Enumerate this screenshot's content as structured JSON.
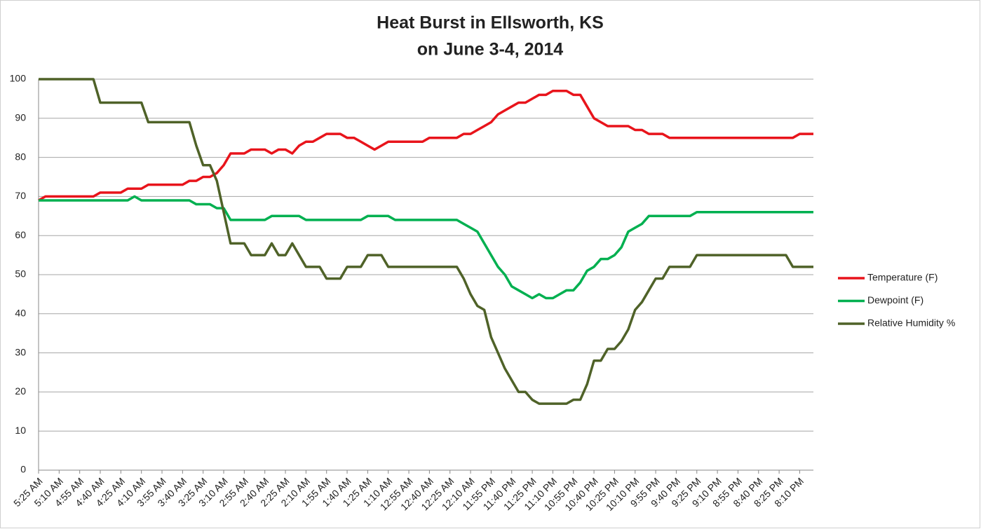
{
  "chart_data": {
    "type": "line",
    "title": "Heat Burst in Ellsworth, KS",
    "subtitle": "on June 3-4, 2014",
    "categories": [
      "5:25 AM",
      null,
      null,
      "5:10 AM",
      null,
      null,
      "4:55 AM",
      null,
      null,
      "4:40 AM",
      null,
      null,
      "4:25 AM",
      null,
      null,
      "4:10 AM",
      null,
      null,
      "3:55 AM",
      null,
      null,
      "3:40 AM",
      null,
      null,
      "3:25 AM",
      null,
      null,
      "3:10 AM",
      null,
      null,
      "2:55 AM",
      null,
      null,
      "2:40 AM",
      null,
      null,
      "2:25 AM",
      null,
      null,
      "2:10 AM",
      null,
      null,
      "1:55 AM",
      null,
      null,
      "1:40 AM",
      null,
      null,
      "1:25 AM",
      null,
      null,
      "1:10 AM",
      null,
      null,
      "12:55 AM",
      null,
      null,
      "12:40 AM",
      null,
      null,
      "12:25 AM",
      null,
      null,
      "12:10 AM",
      null,
      null,
      "11:55 PM",
      null,
      null,
      "11:40 PM",
      null,
      null,
      "11:25 PM",
      null,
      null,
      "11:10 PM",
      null,
      null,
      "10:55 PM",
      null,
      null,
      "10:40 PM",
      null,
      null,
      "10:25 PM",
      null,
      null,
      "10:10 PM",
      null,
      null,
      "9:55 PM",
      null,
      null,
      "9:40 PM",
      null,
      null,
      "9:25 PM",
      null,
      null,
      "9:10 PM",
      null,
      null,
      "8:55 PM",
      null,
      null,
      "8:40 PM",
      null,
      null,
      "8:25 PM",
      null,
      null,
      "8:10 PM",
      null,
      null
    ],
    "series": [
      {
        "name": "Temperature (F)",
        "color": "#e8141b",
        "values": [
          69,
          70,
          70,
          70,
          70,
          70,
          70,
          70,
          70,
          71,
          71,
          71,
          71,
          72,
          72,
          72,
          73,
          73,
          73,
          73,
          73,
          73,
          74,
          74,
          75,
          75,
          76,
          78,
          81,
          81,
          81,
          82,
          82,
          82,
          81,
          82,
          82,
          81,
          83,
          84,
          84,
          85,
          86,
          86,
          86,
          85,
          85,
          84,
          83,
          82,
          83,
          84,
          84,
          84,
          84,
          84,
          84,
          85,
          85,
          85,
          85,
          85,
          86,
          86,
          87,
          88,
          89,
          91,
          92,
          93,
          94,
          94,
          95,
          96,
          96,
          97,
          97,
          97,
          96,
          96,
          93,
          90,
          89,
          88,
          88,
          88,
          88,
          87,
          87,
          86,
          86,
          86,
          85,
          85,
          85,
          85,
          85,
          85,
          85,
          85,
          85,
          85,
          85,
          85,
          85,
          85,
          85,
          85,
          85,
          85,
          85,
          86,
          86,
          86
        ]
      },
      {
        "name": "Dewpoint (F)",
        "color": "#00b050",
        "values": [
          69,
          69,
          69,
          69,
          69,
          69,
          69,
          69,
          69,
          69,
          69,
          69,
          69,
          69,
          70,
          69,
          69,
          69,
          69,
          69,
          69,
          69,
          69,
          68,
          68,
          68,
          67,
          67,
          64,
          64,
          64,
          64,
          64,
          64,
          65,
          65,
          65,
          65,
          65,
          64,
          64,
          64,
          64,
          64,
          64,
          64,
          64,
          64,
          65,
          65,
          65,
          65,
          64,
          64,
          64,
          64,
          64,
          64,
          64,
          64,
          64,
          64,
          63,
          62,
          61,
          58,
          55,
          52,
          50,
          47,
          46,
          45,
          44,
          45,
          44,
          44,
          45,
          46,
          46,
          48,
          51,
          52,
          54,
          54,
          55,
          57,
          61,
          62,
          63,
          65,
          65,
          65,
          65,
          65,
          65,
          65,
          66,
          66,
          66,
          66,
          66,
          66,
          66,
          66,
          66,
          66,
          66,
          66,
          66,
          66,
          66,
          66,
          66,
          66
        ]
      },
      {
        "name": "Relative Humidity %",
        "color": "#4f6228",
        "values": [
          100,
          100,
          100,
          100,
          100,
          100,
          100,
          100,
          100,
          94,
          94,
          94,
          94,
          94,
          94,
          94,
          89,
          89,
          89,
          89,
          89,
          89,
          89,
          83,
          78,
          78,
          74,
          66,
          58,
          58,
          58,
          55,
          55,
          55,
          58,
          55,
          55,
          58,
          55,
          52,
          52,
          52,
          49,
          49,
          49,
          52,
          52,
          52,
          55,
          55,
          55,
          52,
          52,
          52,
          52,
          52,
          52,
          52,
          52,
          52,
          52,
          52,
          49,
          45,
          42,
          41,
          34,
          30,
          26,
          23,
          20,
          20,
          18,
          17,
          17,
          17,
          17,
          17,
          18,
          18,
          22,
          28,
          28,
          31,
          31,
          33,
          36,
          41,
          43,
          46,
          49,
          49,
          52,
          52,
          52,
          52,
          55,
          55,
          55,
          55,
          55,
          55,
          55,
          55,
          55,
          55,
          55,
          55,
          55,
          55,
          52,
          52,
          52,
          52
        ]
      }
    ],
    "ylim": [
      0,
      100
    ],
    "yticks": [
      0,
      10,
      20,
      30,
      40,
      50,
      60,
      70,
      80,
      90,
      100
    ],
    "grid": true,
    "legend": "right"
  }
}
